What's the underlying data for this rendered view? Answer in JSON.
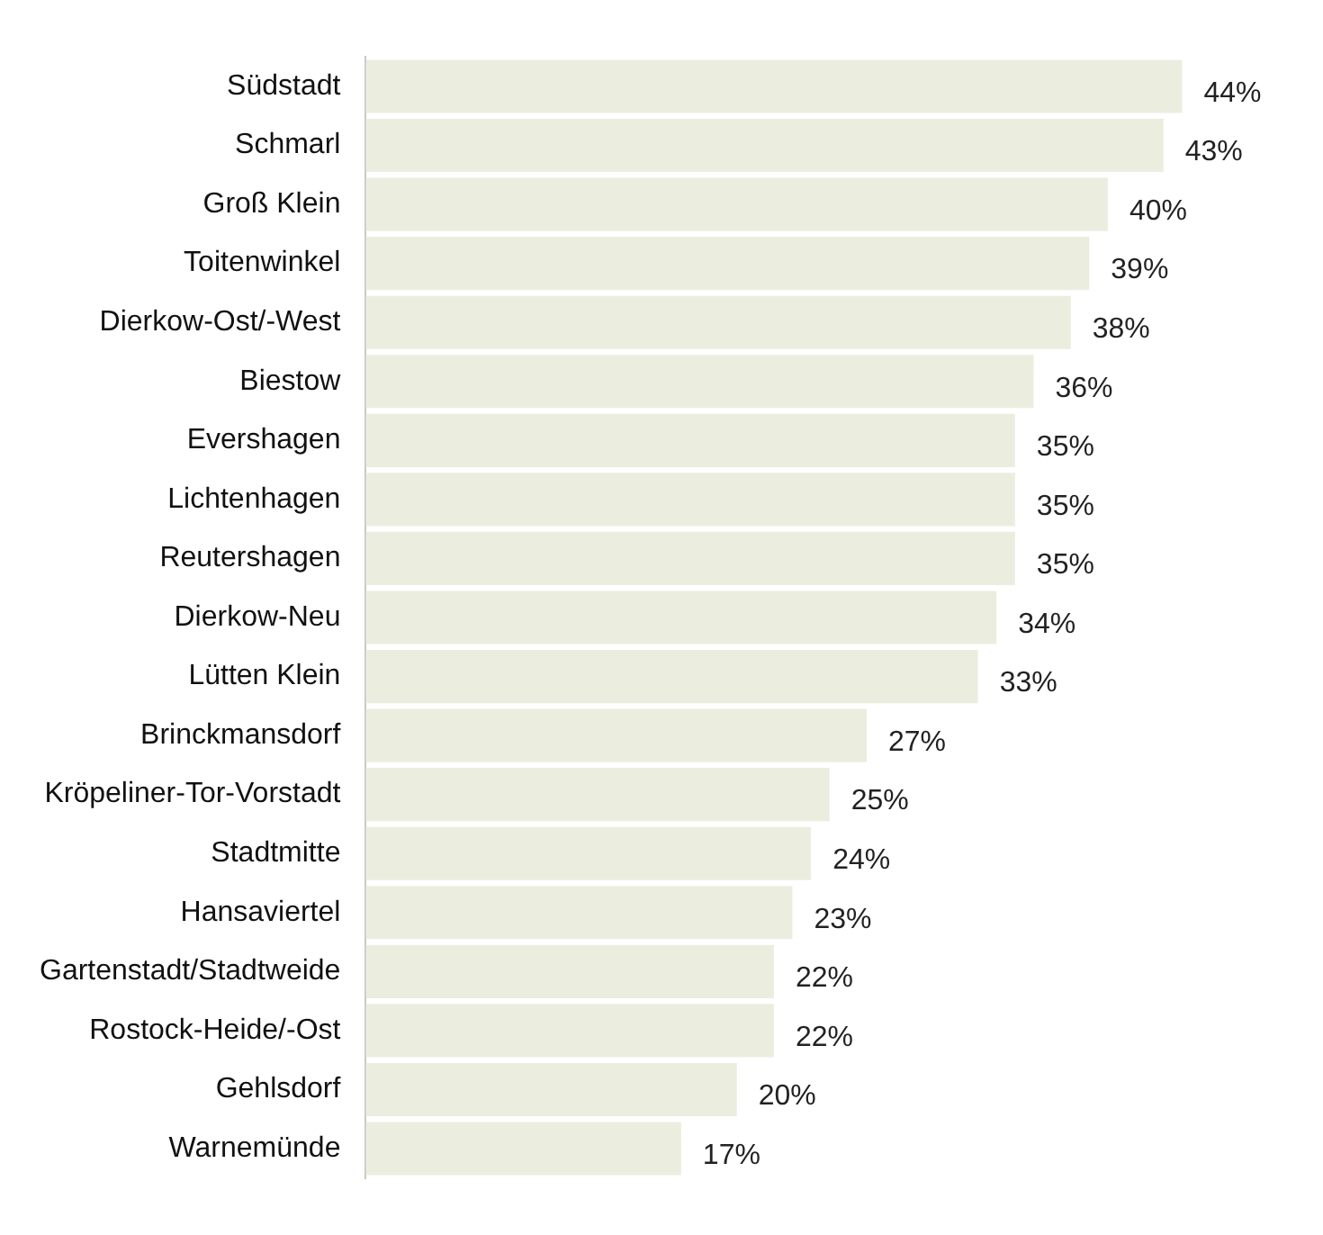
{
  "chart_data": {
    "type": "bar",
    "orientation": "horizontal",
    "categories": [
      "Südstadt",
      "Schmarl",
      "Groß Klein",
      "Toitenwinkel",
      "Dierkow-Ost/-West",
      "Biestow",
      "Evershagen",
      "Lichtenhagen",
      "Reutershagen",
      "Dierkow-Neu",
      "Lütten Klein",
      "Brinckmansdorf",
      "Kröpeliner-Tor-Vorstadt",
      "Stadtmitte",
      "Hansaviertel",
      "Gartenstadt/Stadtweide",
      "Rostock-Heide/-Ost",
      "Gehlsdorf",
      "Warnemünde"
    ],
    "values": [
      44,
      43,
      40,
      39,
      38,
      36,
      35,
      35,
      35,
      34,
      33,
      27,
      25,
      24,
      23,
      22,
      22,
      20,
      17
    ],
    "value_labels": [
      "44%",
      "43%",
      "40%",
      "39%",
      "38%",
      "36%",
      "35%",
      "35%",
      "35%",
      "34%",
      "33%",
      "27%",
      "25%",
      "24%",
      "23%",
      "22%",
      "22%",
      "20%",
      "17%"
    ],
    "color": "#ebeedf",
    "tick_labels": "y",
    "grid": false,
    "legend": false
  }
}
